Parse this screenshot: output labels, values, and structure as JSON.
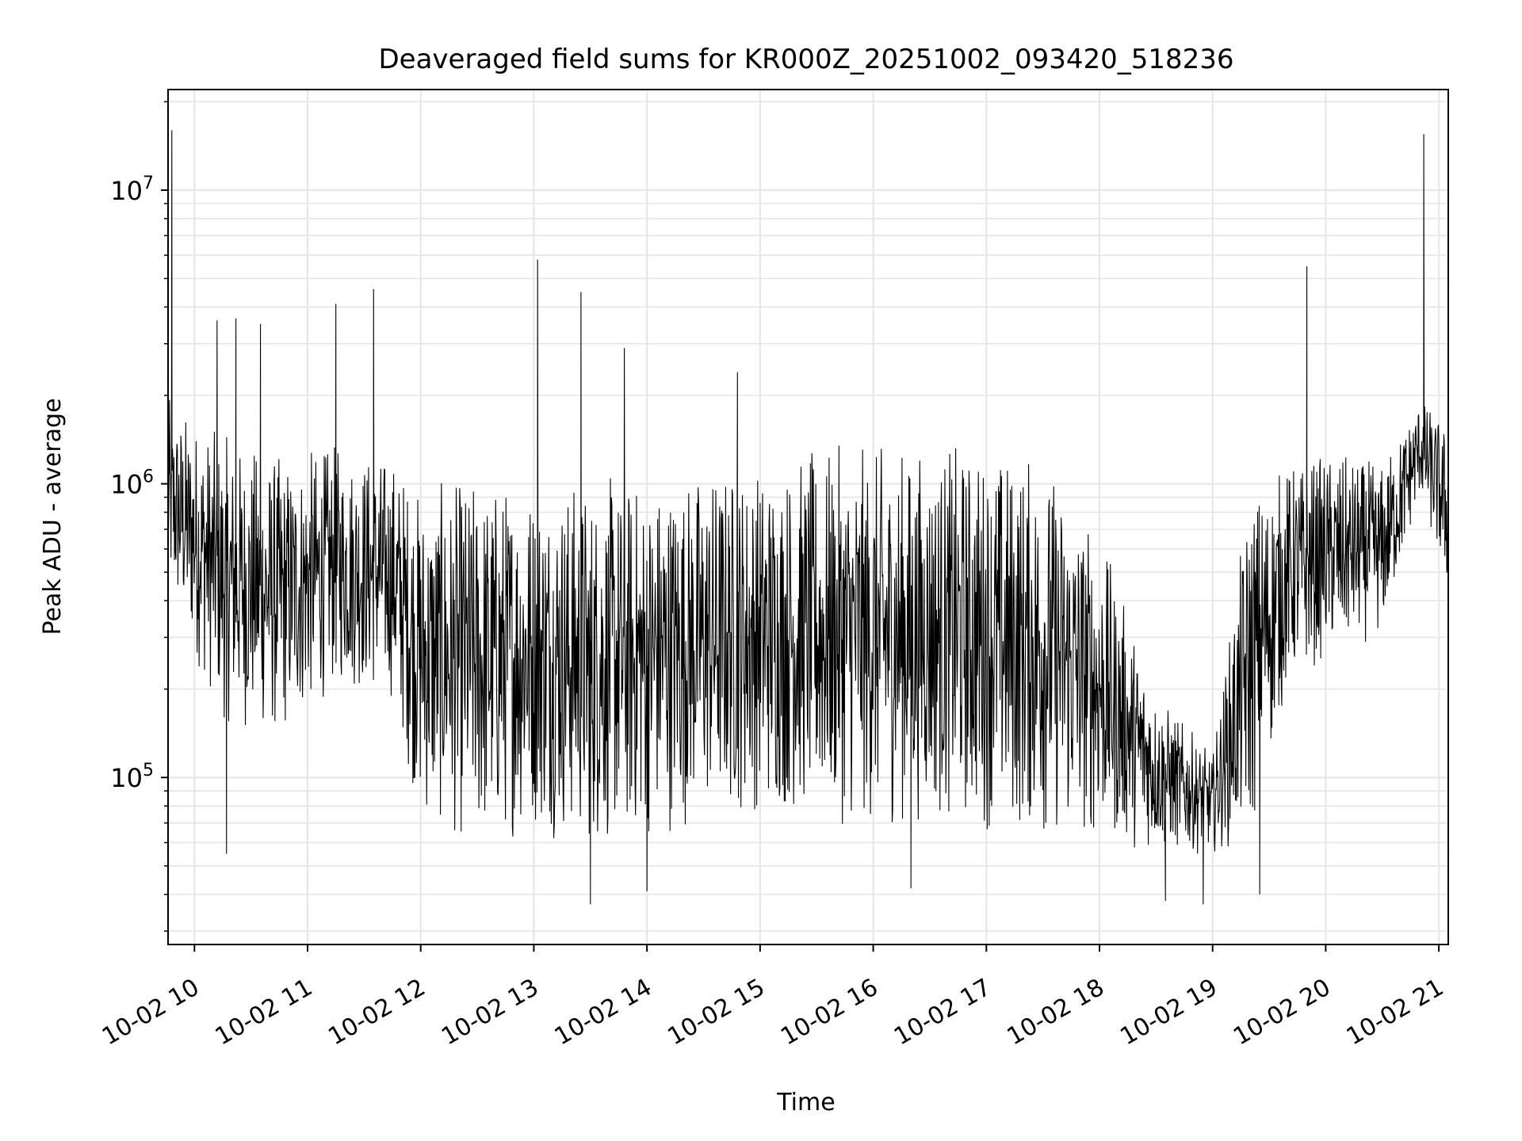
{
  "chart_data": {
    "type": "line",
    "title": "Deaveraged field sums for KR000Z_20251002_093420_518236",
    "xlabel": "Time",
    "ylabel": "Peak ADU - average",
    "yscale": "log",
    "grid": true,
    "x_range": [
      "2025-10-02 09:46",
      "2025-10-02 21:05"
    ],
    "y_range": [
      27000,
      22000000
    ],
    "x_ticks": [
      {
        "value": "2025-10-02 10:00",
        "label": "10-02 10"
      },
      {
        "value": "2025-10-02 11:00",
        "label": "10-02 11"
      },
      {
        "value": "2025-10-02 12:00",
        "label": "10-02 12"
      },
      {
        "value": "2025-10-02 13:00",
        "label": "10-02 13"
      },
      {
        "value": "2025-10-02 14:00",
        "label": "10-02 14"
      },
      {
        "value": "2025-10-02 15:00",
        "label": "10-02 15"
      },
      {
        "value": "2025-10-02 16:00",
        "label": "10-02 16"
      },
      {
        "value": "2025-10-02 17:00",
        "label": "10-02 17"
      },
      {
        "value": "2025-10-02 18:00",
        "label": "10-02 18"
      },
      {
        "value": "2025-10-02 19:00",
        "label": "10-02 19"
      },
      {
        "value": "2025-10-02 20:00",
        "label": "10-02 20"
      },
      {
        "value": "2025-10-02 21:00",
        "label": "10-02 21"
      }
    ],
    "y_ticks": [
      {
        "value": 100000,
        "base": "10",
        "exp": "5"
      },
      {
        "value": 1000000,
        "base": "10",
        "exp": "6"
      },
      {
        "value": 10000000,
        "base": "10",
        "exp": "7"
      }
    ],
    "line_color": "#000000",
    "grid_color": "#e5e5e5",
    "series_envelope": {
      "x": [
        "2025-10-02 09:46",
        "2025-10-02 10:15",
        "2025-10-02 10:45",
        "2025-10-02 11:15",
        "2025-10-02 11:45",
        "2025-10-02 12:00",
        "2025-10-02 12:30",
        "2025-10-02 13:00",
        "2025-10-02 13:30",
        "2025-10-02 14:00",
        "2025-10-02 14:30",
        "2025-10-02 15:00",
        "2025-10-02 15:30",
        "2025-10-02 16:00",
        "2025-10-02 16:30",
        "2025-10-02 17:00",
        "2025-10-02 17:30",
        "2025-10-02 18:00",
        "2025-10-02 18:30",
        "2025-10-02 19:00",
        "2025-10-02 19:20",
        "2025-10-02 19:40",
        "2025-10-02 20:00",
        "2025-10-02 20:30",
        "2025-10-02 20:50",
        "2025-10-02 21:05"
      ],
      "y_low": [
        400000,
        150000,
        130000,
        200000,
        180000,
        70000,
        55000,
        65000,
        55000,
        60000,
        70000,
        75000,
        70000,
        65000,
        70000,
        65000,
        60000,
        60000,
        55000,
        55000,
        60000,
        200000,
        250000,
        300000,
        900000,
        400000
      ],
      "y_high": [
        2000000,
        1500000,
        1300000,
        1400000,
        1300000,
        1000000,
        1100000,
        1100000,
        1100000,
        1100000,
        1200000,
        1250000,
        1350000,
        1400000,
        1400000,
        1400000,
        1300000,
        700000,
        200000,
        120000,
        1000000,
        1200000,
        1300000,
        1200000,
        2000000,
        1600000
      ]
    },
    "spikes": [
      {
        "x": "2025-10-02 09:48",
        "y": 16000000
      },
      {
        "x": "2025-10-02 13:02",
        "y": 5800000
      },
      {
        "x": "2025-10-02 13:25",
        "y": 4500000
      },
      {
        "x": "2025-10-02 11:35",
        "y": 4600000
      },
      {
        "x": "2025-10-02 11:15",
        "y": 4100000
      },
      {
        "x": "2025-10-02 14:48",
        "y": 2400000
      },
      {
        "x": "2025-10-02 19:50",
        "y": 5500000
      },
      {
        "x": "2025-10-02 20:52",
        "y": 15500000
      },
      {
        "x": "2025-10-02 13:48",
        "y": 2900000
      },
      {
        "x": "2025-10-02 10:12",
        "y": 3600000
      },
      {
        "x": "2025-10-02 10:22",
        "y": 3650000
      },
      {
        "x": "2025-10-02 10:35",
        "y": 3500000
      }
    ],
    "dips": [
      {
        "x": "2025-10-02 10:17",
        "y": 55000
      },
      {
        "x": "2025-10-02 13:30",
        "y": 37000
      },
      {
        "x": "2025-10-02 18:55",
        "y": 37000
      },
      {
        "x": "2025-10-02 18:35",
        "y": 38000
      },
      {
        "x": "2025-10-02 16:20",
        "y": 42000
      },
      {
        "x": "2025-10-02 14:00",
        "y": 41000
      },
      {
        "x": "2025-10-02 19:25",
        "y": 40000
      }
    ]
  }
}
